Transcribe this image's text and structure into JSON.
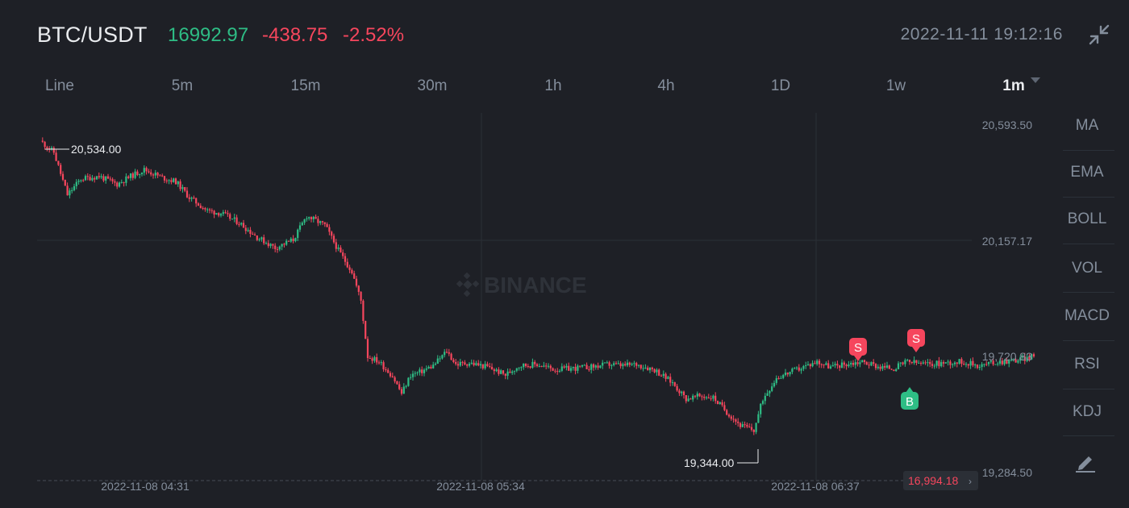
{
  "header": {
    "pair": "BTC/USDT",
    "last_price": "16992.97",
    "change": "-438.75",
    "change_pct": "-2.52%",
    "datetime": "2022-11-11 19:12:16"
  },
  "intervals": [
    "Line",
    "5m",
    "15m",
    "30m",
    "1h",
    "4h",
    "1D",
    "1w",
    "1m"
  ],
  "active_interval": "1m",
  "indicators": [
    "MA",
    "EMA",
    "BOLL",
    "VOL",
    "MACD",
    "RSI",
    "KDJ"
  ],
  "watermark": "BINANCE",
  "colors": {
    "up": "#2ebd85",
    "down": "#f6465d",
    "bg": "#1e2026",
    "text": "#848e9c",
    "text_bright": "#eaecef"
  },
  "chart_data": {
    "type": "candlestick",
    "y_axis_labels": [
      "20,593.50",
      "20,157.17",
      "19,720.83",
      "19,284.50"
    ],
    "y_axis_values": [
      20593.5,
      20157.17,
      19720.83,
      19284.5
    ],
    "x_axis_labels": [
      "2022-11-08 04:31",
      "2022-11-08 05:34",
      "2022-11-08 06:37"
    ],
    "high_marker": "20,534.00",
    "low_marker": "19,344.00",
    "current_price_tag": "16,994.18",
    "trade_markers": [
      {
        "label": "S",
        "side": "sell"
      },
      {
        "label": "S",
        "side": "sell"
      },
      {
        "label": "B",
        "side": "buy"
      }
    ],
    "close_path": [
      [
        0,
        20534
      ],
      [
        6,
        20490
      ],
      [
        12,
        20330
      ],
      [
        18,
        20390
      ],
      [
        26,
        20400
      ],
      [
        34,
        20370
      ],
      [
        40,
        20400
      ],
      [
        46,
        20425
      ],
      [
        54,
        20395
      ],
      [
        60,
        20380
      ],
      [
        66,
        20320
      ],
      [
        74,
        20270
      ],
      [
        80,
        20260
      ],
      [
        88,
        20225
      ],
      [
        96,
        20170
      ],
      [
        104,
        20130
      ],
      [
        112,
        20160
      ],
      [
        118,
        20250
      ],
      [
        126,
        20215
      ],
      [
        132,
        20120
      ],
      [
        138,
        20040
      ],
      [
        142,
        19930
      ],
      [
        145,
        19720
      ],
      [
        150,
        19700
      ],
      [
        156,
        19645
      ],
      [
        160,
        19580
      ],
      [
        164,
        19650
      ],
      [
        168,
        19660
      ],
      [
        174,
        19685
      ],
      [
        180,
        19740
      ],
      [
        184,
        19690
      ],
      [
        190,
        19695
      ],
      [
        198,
        19680
      ],
      [
        206,
        19650
      ],
      [
        212,
        19685
      ],
      [
        220,
        19690
      ],
      [
        228,
        19670
      ],
      [
        236,
        19675
      ],
      [
        244,
        19680
      ],
      [
        252,
        19690
      ],
      [
        258,
        19685
      ],
      [
        264,
        19690
      ],
      [
        272,
        19670
      ],
      [
        280,
        19620
      ],
      [
        286,
        19560
      ],
      [
        292,
        19570
      ],
      [
        298,
        19565
      ],
      [
        304,
        19510
      ],
      [
        310,
        19460
      ],
      [
        316,
        19440
      ],
      [
        320,
        19560
      ],
      [
        326,
        19640
      ],
      [
        332,
        19660
      ],
      [
        338,
        19680
      ],
      [
        344,
        19700
      ],
      [
        350,
        19680
      ],
      [
        356,
        19690
      ],
      [
        364,
        19700
      ],
      [
        372,
        19680
      ],
      [
        378,
        19675
      ],
      [
        384,
        19700
      ],
      [
        392,
        19690
      ],
      [
        400,
        19695
      ],
      [
        408,
        19700
      ],
      [
        416,
        19685
      ],
      [
        424,
        19700
      ],
      [
        432,
        19705
      ],
      [
        440,
        19720
      ]
    ]
  }
}
